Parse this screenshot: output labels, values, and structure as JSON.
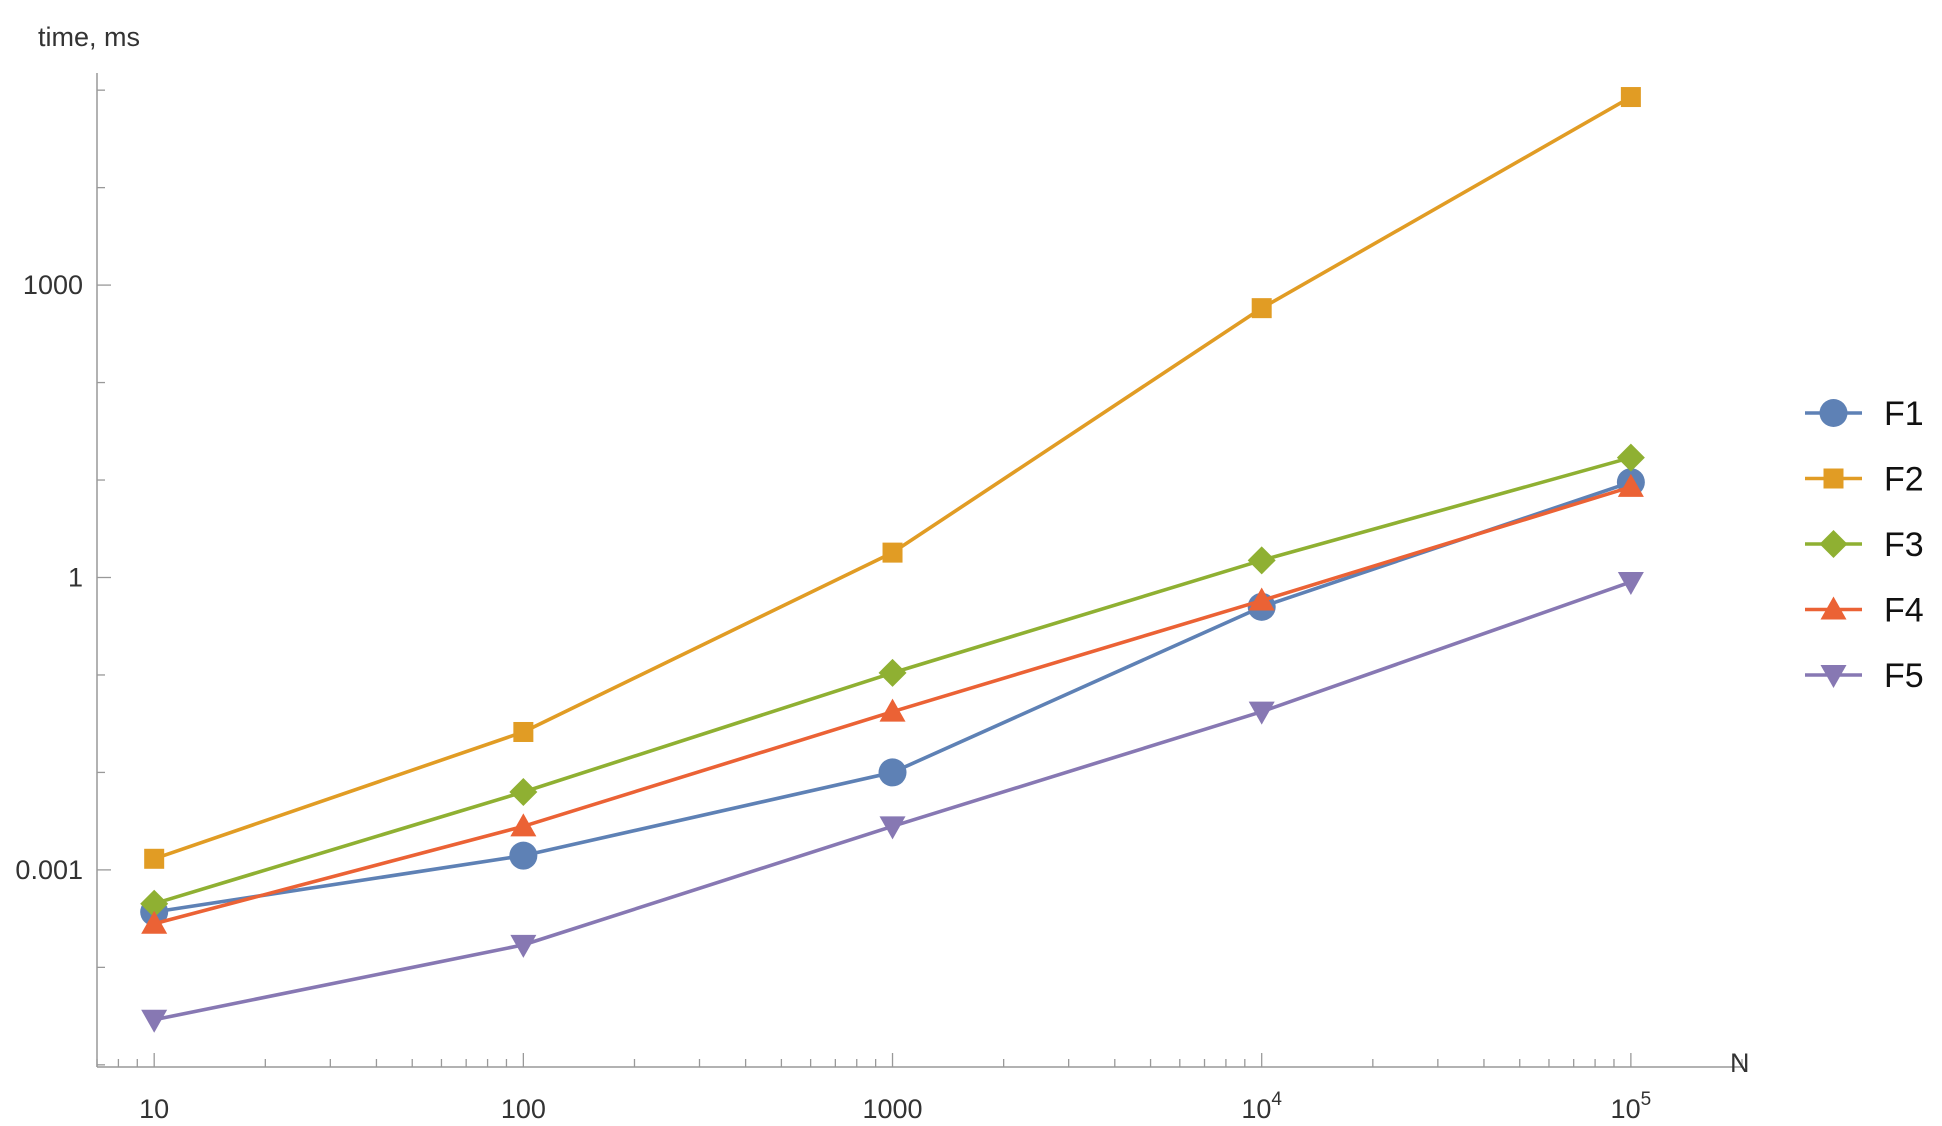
{
  "chart_data": {
    "type": "line",
    "title": "",
    "xlabel": "N",
    "ylabel": "time, ms",
    "x_scale": "log",
    "y_scale": "log",
    "x": [
      10,
      100,
      1000,
      10000,
      100000
    ],
    "xlim": [
      7,
      200000
    ],
    "ylim": [
      9.5e-06,
      150000
    ],
    "x_ticks": [
      {
        "value": 10,
        "base": "10",
        "exp": ""
      },
      {
        "value": 100,
        "base": "100",
        "exp": ""
      },
      {
        "value": 1000,
        "base": "1000",
        "exp": ""
      },
      {
        "value": 10000,
        "base": "10",
        "exp": "4"
      },
      {
        "value": 100000,
        "base": "10",
        "exp": "5"
      }
    ],
    "y_ticks": [
      {
        "value": 0.001,
        "label": "0.001"
      },
      {
        "value": 1,
        "label": "1"
      },
      {
        "value": 1000,
        "label": "1000"
      }
    ],
    "grid": false,
    "legend_position": "right",
    "series": [
      {
        "name": "F1",
        "color": "#5e81b5",
        "marker": "circle",
        "values": [
          0.00037,
          0.0014,
          0.01,
          0.5,
          9.5
        ]
      },
      {
        "name": "F2",
        "color": "#e19c24",
        "marker": "square",
        "values": [
          0.0013,
          0.026,
          1.8,
          580,
          85000
        ]
      },
      {
        "name": "F3",
        "color": "#8fb032",
        "marker": "diamond",
        "values": [
          0.00045,
          0.0063,
          0.105,
          1.5,
          17
        ]
      },
      {
        "name": "F4",
        "color": "#eb6235",
        "marker": "triangle-up",
        "values": [
          0.00028,
          0.0028,
          0.042,
          0.58,
          8.5
        ]
      },
      {
        "name": "F5",
        "color": "#8778b3",
        "marker": "triangle-down",
        "values": [
          2.9e-05,
          0.00017,
          0.0028,
          0.042,
          0.9
        ]
      }
    ]
  }
}
